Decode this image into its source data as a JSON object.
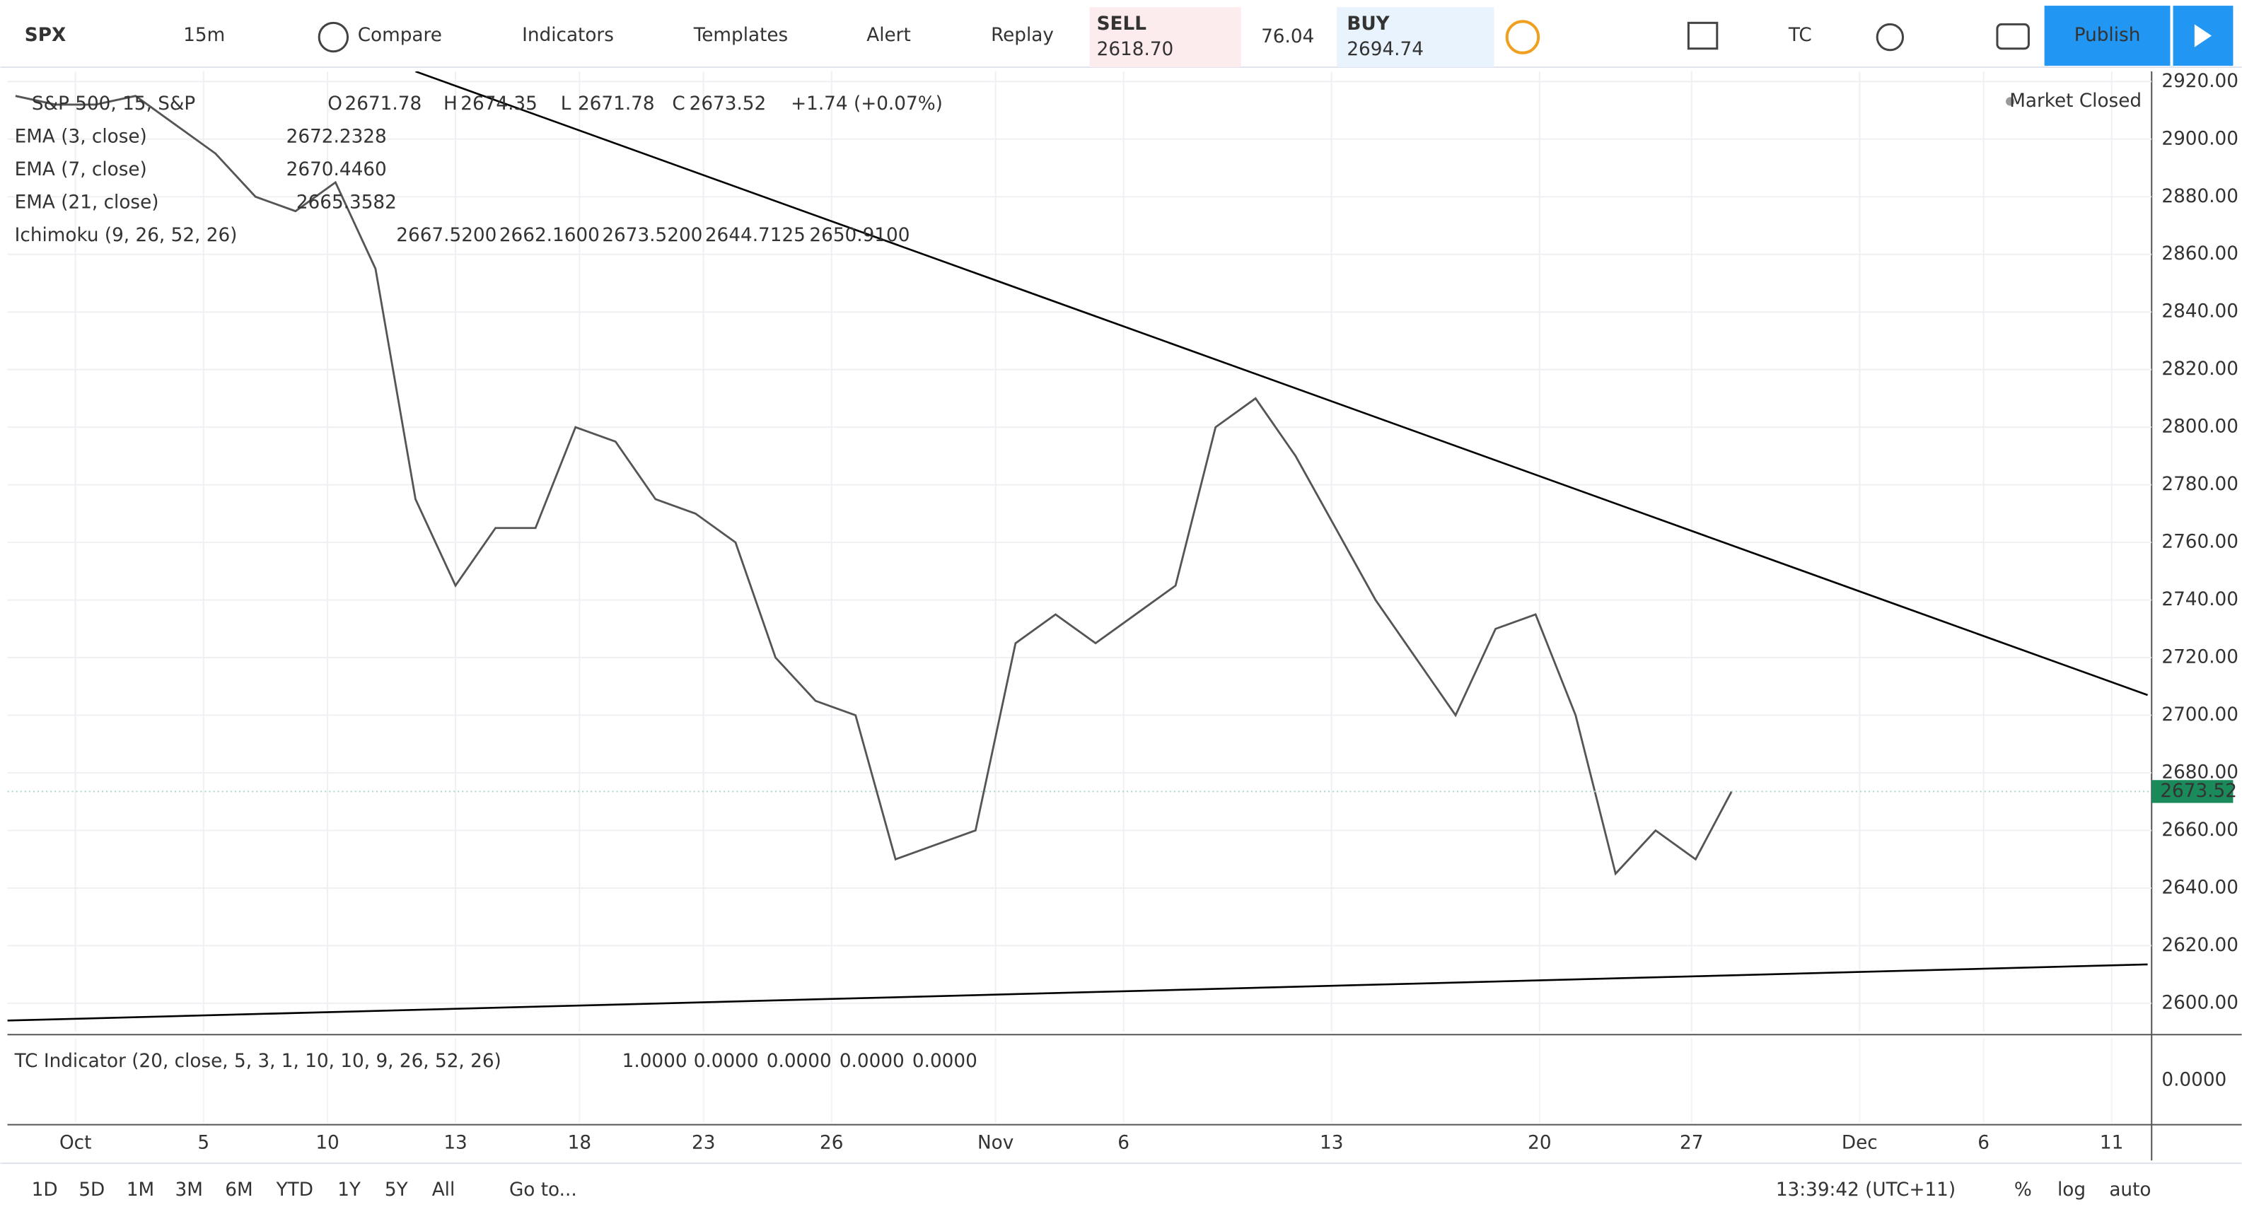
{
  "toolbar": {
    "symbol": "SPX",
    "interval": "15m",
    "buttons": [
      "Compare",
      "Indicators",
      "Templates",
      "Alert",
      "Replay"
    ],
    "sell": {
      "label": "SELL",
      "price": "2618.70"
    },
    "spread": "76.04",
    "buy": {
      "label": "BUY",
      "price": "2694.74"
    },
    "layout": "TC",
    "publish": "Publish"
  },
  "legend": {
    "title": "S&P 500, 15, S&P",
    "ohlc": [
      {
        "key": "O",
        "value": "2671.78"
      },
      {
        "key": "H",
        "value": "2674.35"
      },
      {
        "key": "L",
        "value": "2671.78"
      },
      {
        "key": "C",
        "value": "2673.52"
      }
    ],
    "change": "+1.74 (+0.07%)",
    "indicators": [
      {
        "name": "EMA (3, close)",
        "values": [
          {
            "text": "2672.2328",
            "color": "#1a1aa6"
          }
        ]
      },
      {
        "name": "EMA (7, close)",
        "values": [
          {
            "text": "2670.4460",
            "color": "#d11a1a"
          }
        ]
      },
      {
        "name": "EMA (21, close)",
        "values": [
          {
            "text": "2665.3582",
            "color": "#333333"
          }
        ]
      },
      {
        "name": "Ichimoku (9, 26, 52, 26)",
        "values": [
          {
            "text": "2667.5200",
            "color": "#2196f3"
          },
          {
            "text": "2662.1600",
            "color": "#e8a0a8"
          },
          {
            "text": "2673.5200",
            "color": "#5b9bd5"
          },
          {
            "text": "2644.7125",
            "color": "#1f6fa8"
          },
          {
            "text": "2650.9100",
            "color": "#c800c8"
          }
        ]
      }
    ]
  },
  "status": "Market Closed",
  "chart_data": {
    "type": "line",
    "color": "#555555",
    "x": [
      -1.5,
      -0.5,
      0.5,
      1.5,
      2.5,
      3.5,
      4.5,
      5.5,
      6.5,
      7.5,
      8.5,
      9.5,
      10.5,
      11.5,
      12.5,
      13.5,
      14.5,
      15.5,
      16.5,
      17.5,
      18.5,
      19.5,
      20.5,
      21.5,
      22.5,
      23.5,
      24.5,
      25.5,
      26.5,
      27.5,
      28.5,
      29.5,
      30.5,
      31.5,
      32.5,
      33.5,
      34.5,
      35.5,
      36.5,
      37.5,
      38.5,
      39.5,
      40.5,
      41.4
    ],
    "values": [
      2915,
      2912,
      2912,
      2915,
      2905,
      2895,
      2880,
      2875,
      2885,
      2855,
      2775,
      2745,
      2765,
      2765,
      2800,
      2795,
      2775,
      2770,
      2760,
      2720,
      2705,
      2700,
      2650,
      2655,
      2660,
      2725,
      2735,
      2725,
      2735,
      2745,
      2800,
      2810,
      2790,
      2765,
      2740,
      2720,
      2700,
      2730,
      2735,
      2700,
      2645,
      2660,
      2650,
      2673.52
    ],
    "trendlines": [
      {
        "x": [
          8.5,
          51.8
        ],
        "values": [
          2923.5,
          2707
        ]
      },
      {
        "x": [
          -1.7,
          51.8
        ],
        "values": [
          2594,
          2613.5
        ]
      }
    ],
    "last_price": {
      "value": 2673.52,
      "label": "2673.52"
    },
    "xlim": [
      -1.7,
      51.9
    ],
    "ylim": [
      2590.1,
      2923.5
    ],
    "grid": true,
    "xticks": [
      {
        "value": 0,
        "label": "Oct"
      },
      {
        "value": 3.2,
        "label": "5"
      },
      {
        "value": 6.3,
        "label": "10"
      },
      {
        "value": 9.5,
        "label": "13"
      },
      {
        "value": 12.6,
        "label": "18"
      },
      {
        "value": 15.7,
        "label": "23"
      },
      {
        "value": 18.9,
        "label": "26"
      },
      {
        "value": 23,
        "label": "Nov"
      },
      {
        "value": 26.2,
        "label": "6"
      },
      {
        "value": 31.4,
        "label": "13"
      },
      {
        "value": 36.6,
        "label": "20"
      },
      {
        "value": 40.4,
        "label": "27"
      },
      {
        "value": 44.6,
        "label": "Dec"
      },
      {
        "value": 47.7,
        "label": "6"
      },
      {
        "value": 50.9,
        "label": "11"
      }
    ],
    "yticks": [
      {
        "value": 2600,
        "label": "2600.00"
      },
      {
        "value": 2620,
        "label": "2620.00"
      },
      {
        "value": 2640,
        "label": "2640.00"
      },
      {
        "value": 2660,
        "label": "2660.00"
      },
      {
        "value": 2680,
        "label": "2680.00"
      },
      {
        "value": 2700,
        "label": "2700.00"
      },
      {
        "value": 2720,
        "label": "2720.00"
      },
      {
        "value": 2740,
        "label": "2740.00"
      },
      {
        "value": 2760,
        "label": "2760.00"
      },
      {
        "value": 2780,
        "label": "2780.00"
      },
      {
        "value": 2800,
        "label": "2800.00"
      },
      {
        "value": 2820,
        "label": "2820.00"
      },
      {
        "value": 2840,
        "label": "2840.00"
      },
      {
        "value": 2860,
        "label": "2860.00"
      },
      {
        "value": 2880,
        "label": "2880.00"
      },
      {
        "value": 2900,
        "label": "2900.00"
      },
      {
        "value": 2920,
        "label": "2920.00"
      }
    ]
  },
  "indicator_pane": {
    "name": "TC Indicator (20, close, 5, 3, 1, 10, 10, 9, 26, 52, 26)",
    "values": [
      {
        "text": "1.0000",
        "color": "#d0d0d0"
      },
      {
        "text": "0.0000",
        "color": "#b8e6c8"
      },
      {
        "text": "0.0000",
        "color": "#138a36"
      },
      {
        "text": "0.0000",
        "color": "#f3c6cc"
      },
      {
        "text": "0.0000",
        "color": "#d11a1a"
      }
    ],
    "ytick": "0.0000"
  },
  "bottom_bar": {
    "ranges": [
      "1D",
      "5D",
      "1M",
      "3M",
      "6M",
      "YTD",
      "1Y",
      "5Y",
      "All"
    ],
    "goto": "Go to...",
    "clock": "13:39:42 (UTC+11)",
    "options": [
      "%",
      "log",
      "auto"
    ]
  }
}
